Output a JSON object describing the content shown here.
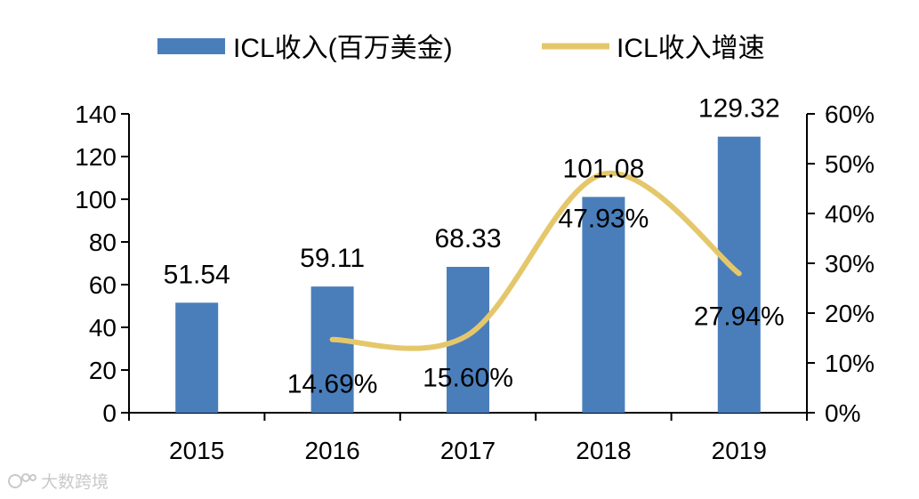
{
  "chart_data": {
    "type": "bar",
    "categories": [
      "2015",
      "2016",
      "2017",
      "2018",
      "2019"
    ],
    "series": [
      {
        "name": "ICL收入(百万美金)",
        "kind": "bar",
        "axis": "left",
        "values": [
          51.54,
          59.11,
          68.33,
          101.08,
          129.32
        ],
        "labels": [
          "51.54",
          "59.11",
          "68.33",
          "101.08",
          "129.32"
        ],
        "color": "#4a7ebb"
      },
      {
        "name": "ICL收入增速",
        "kind": "line",
        "axis": "right",
        "x": [
          "2016",
          "2017",
          "2018",
          "2019"
        ],
        "values": [
          14.69,
          15.6,
          47.93,
          27.94
        ],
        "labels": [
          "14.69%",
          "15.60%",
          "47.93%",
          "27.94%"
        ],
        "color": "#e5c76b"
      }
    ],
    "y_left": {
      "min": 0,
      "max": 140,
      "ticks": [
        "0",
        "20",
        "40",
        "60",
        "80",
        "100",
        "120",
        "140"
      ]
    },
    "y_right": {
      "min": 0,
      "max": 60,
      "ticks": [
        "0%",
        "10%",
        "20%",
        "30%",
        "40%",
        "50%",
        "60%"
      ]
    },
    "legend": "top",
    "grid": false
  },
  "watermark": {
    "text": "大数跨境"
  }
}
